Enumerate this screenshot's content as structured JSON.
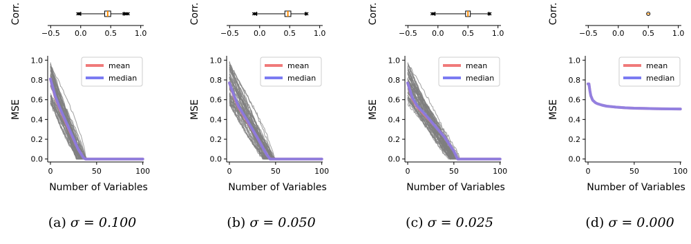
{
  "chart_data": [
    {
      "type": "line",
      "caption": "(a) σ = 0.100",
      "caption_label": "(a)",
      "caption_math": "σ = 0.100",
      "xlabel": "Number of Variables",
      "ylabel": "MSE",
      "xlim": [
        -3,
        101
      ],
      "ylim": [
        -0.03,
        1.03
      ],
      "xticks": [
        "0",
        "50",
        "100"
      ],
      "yticks": [
        "0.0",
        "0.2",
        "0.4",
        "0.6",
        "0.8",
        "1.0"
      ],
      "legend": [
        "mean",
        "median"
      ],
      "legend_position": "upper right",
      "grey_runs": {
        "count": 60,
        "start_range": [
          0.55,
          0.98
        ],
        "zero_range": [
          28,
          40
        ]
      },
      "series": [
        {
          "name": "mean",
          "color": "#f07a7a",
          "x": [
            0,
            5,
            10,
            20,
            30,
            36,
            38,
            100
          ],
          "y": [
            0.81,
            0.63,
            0.51,
            0.3,
            0.1,
            0.01,
            0.0,
            0.0
          ]
        },
        {
          "name": "median",
          "color": "#7b7bf2",
          "x": [
            0,
            5,
            10,
            20,
            30,
            36,
            38,
            100
          ],
          "y": [
            0.81,
            0.64,
            0.52,
            0.31,
            0.1,
            0.01,
            0.0,
            0.0
          ]
        }
      ],
      "inset": {
        "ylabel": "Corr.",
        "xlim": [
          -0.5,
          1.0
        ],
        "xticks": [
          "−0.5",
          "0.0",
          "0.5",
          "1.0"
        ],
        "whisker": [
          0.0,
          0.72
        ],
        "box": [
          0.4,
          0.5
        ],
        "median": 0.45,
        "fliers": [
          -0.05,
          0.8
        ]
      }
    },
    {
      "type": "line",
      "caption": "(b) σ = 0.050",
      "caption_label": "(b)",
      "caption_math": "σ = 0.050",
      "xlabel": "Number of Variables",
      "ylabel": "MSE",
      "xlim": [
        -3,
        101
      ],
      "ylim": [
        -0.03,
        1.03
      ],
      "xticks": [
        "0",
        "50",
        "100"
      ],
      "yticks": [
        "0.0",
        "0.2",
        "0.4",
        "0.6",
        "0.8",
        "1.0"
      ],
      "legend": [
        "mean",
        "median"
      ],
      "legend_position": "upper right",
      "grey_runs": {
        "count": 60,
        "start_range": [
          0.55,
          0.98
        ],
        "zero_range": [
          36,
          50
        ]
      },
      "series": [
        {
          "name": "mean",
          "color": "#f07a7a",
          "x": [
            0,
            5,
            10,
            20,
            30,
            40,
            44,
            100
          ],
          "y": [
            0.77,
            0.63,
            0.52,
            0.37,
            0.22,
            0.05,
            0.0,
            0.0
          ]
        },
        {
          "name": "median",
          "color": "#7b7bf2",
          "x": [
            0,
            5,
            10,
            20,
            30,
            40,
            44,
            100
          ],
          "y": [
            0.77,
            0.64,
            0.53,
            0.38,
            0.22,
            0.05,
            0.0,
            0.0
          ]
        }
      ],
      "inset": {
        "ylabel": "Corr.",
        "xlim": [
          -0.5,
          1.0
        ],
        "xticks": [
          "−0.5",
          "0.0",
          "0.5",
          "1.0"
        ],
        "whisker": [
          -0.05,
          0.77
        ],
        "box": [
          0.42,
          0.52
        ],
        "median": 0.47,
        "fliers": [
          -0.1,
          0.8
        ]
      }
    },
    {
      "type": "line",
      "caption": "(c) σ = 0.025",
      "caption_label": "(c)",
      "caption_math": "σ = 0.025",
      "xlabel": "Number of Variables",
      "ylabel": "MSE",
      "xlim": [
        -3,
        101
      ],
      "ylim": [
        -0.03,
        1.03
      ],
      "xticks": [
        "0",
        "50",
        "100"
      ],
      "yticks": [
        "0.0",
        "0.2",
        "0.4",
        "0.6",
        "0.8",
        "1.0"
      ],
      "legend": [
        "mean",
        "median"
      ],
      "legend_position": "upper right",
      "grey_runs": {
        "count": 60,
        "start_range": [
          0.55,
          0.98
        ],
        "zero_range": [
          45,
          57
        ]
      },
      "series": [
        {
          "name": "mean",
          "color": "#f07a7a",
          "x": [
            0,
            5,
            10,
            20,
            30,
            40,
            50,
            54,
            100
          ],
          "y": [
            0.77,
            0.61,
            0.53,
            0.43,
            0.33,
            0.22,
            0.08,
            0.0,
            0.0
          ]
        },
        {
          "name": "median",
          "color": "#7b7bf2",
          "x": [
            0,
            5,
            10,
            20,
            30,
            40,
            50,
            54,
            100
          ],
          "y": [
            0.77,
            0.62,
            0.54,
            0.44,
            0.33,
            0.22,
            0.08,
            0.0,
            0.0
          ]
        }
      ],
      "inset": {
        "ylabel": "Corr.",
        "xlim": [
          -0.5,
          1.0
        ],
        "xticks": [
          "−0.5",
          "0.0",
          "0.5",
          "1.0"
        ],
        "whisker": [
          -0.05,
          0.85
        ],
        "box": [
          0.46,
          0.54
        ],
        "median": 0.5,
        "fliers": [
          -0.1,
          0.88
        ]
      }
    },
    {
      "type": "line",
      "caption": "(d) σ = 0.000",
      "caption_label": "(d)",
      "caption_math": "σ = 0.000",
      "xlabel": "Number of Variables",
      "ylabel": "MSE",
      "xlim": [
        -3,
        101
      ],
      "ylim": [
        -0.03,
        1.03
      ],
      "xticks": [
        "0",
        "50",
        "100"
      ],
      "yticks": [
        "0.0",
        "0.2",
        "0.4",
        "0.6",
        "0.8",
        "1.0"
      ],
      "legend": [
        "mean",
        "median"
      ],
      "legend_position": "upper right",
      "grey_runs": {
        "count": 0,
        "start_range": [
          0.75,
          0.75
        ],
        "zero_range": [
          100,
          100
        ]
      },
      "series": [
        {
          "name": "mean",
          "color": "#f07a7a",
          "x": [
            0,
            1,
            2,
            3,
            5,
            8,
            10,
            15,
            20,
            30,
            40,
            50,
            60,
            70,
            80,
            90,
            100
          ],
          "y": [
            0.76,
            0.76,
            0.69,
            0.64,
            0.595,
            0.57,
            0.56,
            0.545,
            0.535,
            0.525,
            0.518,
            0.514,
            0.512,
            0.51,
            0.508,
            0.507,
            0.506
          ]
        },
        {
          "name": "median",
          "color": "#7b7bf2",
          "x": [
            0,
            1,
            2,
            3,
            5,
            8,
            10,
            15,
            20,
            30,
            40,
            50,
            60,
            70,
            80,
            90,
            100
          ],
          "y": [
            0.76,
            0.76,
            0.69,
            0.64,
            0.595,
            0.57,
            0.56,
            0.545,
            0.535,
            0.525,
            0.518,
            0.514,
            0.512,
            0.51,
            0.508,
            0.507,
            0.506
          ]
        }
      ],
      "inset": {
        "ylabel": "Corr.",
        "xlim": [
          -0.5,
          1.0
        ],
        "xticks": [
          "−0.5",
          "0.0",
          "0.5",
          "1.0"
        ],
        "whisker": [
          0.5,
          0.5
        ],
        "box": [
          0.5,
          0.5
        ],
        "median": 0.5,
        "fliers": [
          0.5,
          0.5
        ]
      }
    }
  ]
}
